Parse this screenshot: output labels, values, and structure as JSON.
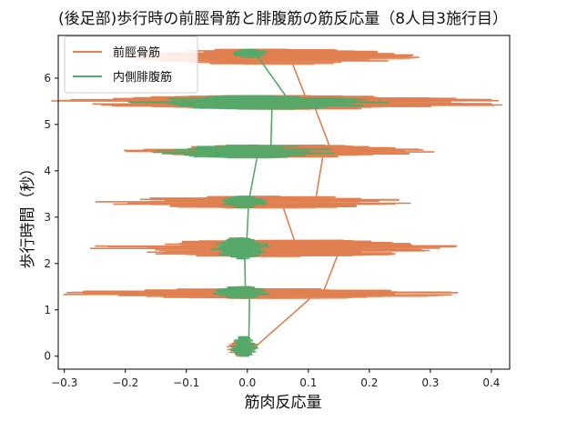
{
  "chart_data": {
    "type": "line",
    "title": "(後足部)歩行時の前脛骨筋と腓腹筋の筋反応量（8人目3施行目）",
    "xlabel": "筋肉反応量",
    "ylabel": "歩行時間（秒）",
    "xlim": [
      -0.31,
      0.43
    ],
    "ylim": [
      -0.28,
      6.92
    ],
    "xticks": [
      -0.3,
      -0.2,
      -0.1,
      0.0,
      0.1,
      0.2,
      0.3,
      0.4
    ],
    "xtick_labels": [
      "−0.3",
      "−0.2",
      "−0.1",
      "0.0",
      "0.1",
      "0.2",
      "0.3",
      "0.4"
    ],
    "yticks": [
      0,
      1,
      2,
      3,
      4,
      5,
      6
    ],
    "ytick_labels": [
      "0",
      "1",
      "2",
      "3",
      "4",
      "5",
      "6"
    ],
    "legend_position": "top-left",
    "orientation": "value on x-axis, time on y-axis",
    "series": [
      {
        "name": "前脛骨筋",
        "color": "#e07f4f",
        "bursts": [
          {
            "t_start": 0.35,
            "t_end": 0.0,
            "amp": 0.025,
            "center": -0.01
          },
          {
            "t_start": 1.45,
            "t_end": 1.25,
            "amp": 0.36,
            "center": 0.02
          },
          {
            "t_start": 2.5,
            "t_end": 2.15,
            "amp": 0.32,
            "center": 0.05
          },
          {
            "t_start": 3.45,
            "t_end": 3.2,
            "amp": 0.27,
            "center": 0.02
          },
          {
            "t_start": 4.55,
            "t_end": 4.3,
            "amp": 0.27,
            "center": 0.05
          },
          {
            "t_start": 5.62,
            "t_end": 5.33,
            "amp": 0.41,
            "center": 0.06
          },
          {
            "t_start": 6.62,
            "t_end": 6.3,
            "amp": 0.27,
            "center": 0.04
          }
        ]
      },
      {
        "name": "内側腓腹筋",
        "color": "#55a868",
        "bursts": [
          {
            "t_start": 0.42,
            "t_end": 0.0,
            "amp": 0.025,
            "center": -0.005
          },
          {
            "t_start": 1.5,
            "t_end": 1.25,
            "amp": 0.05,
            "center": -0.01
          },
          {
            "t_start": 2.55,
            "t_end": 2.1,
            "amp": 0.05,
            "center": -0.01
          },
          {
            "t_start": 3.45,
            "t_end": 3.2,
            "amp": 0.04,
            "center": -0.005
          },
          {
            "t_start": 4.55,
            "t_end": 4.28,
            "amp": 0.16,
            "center": 0.0
          },
          {
            "t_start": 5.62,
            "t_end": 5.33,
            "amp": 0.22,
            "center": 0.02
          },
          {
            "t_start": 6.62,
            "t_end": 6.45,
            "amp": 0.03,
            "center": 0.005
          }
        ]
      }
    ]
  }
}
